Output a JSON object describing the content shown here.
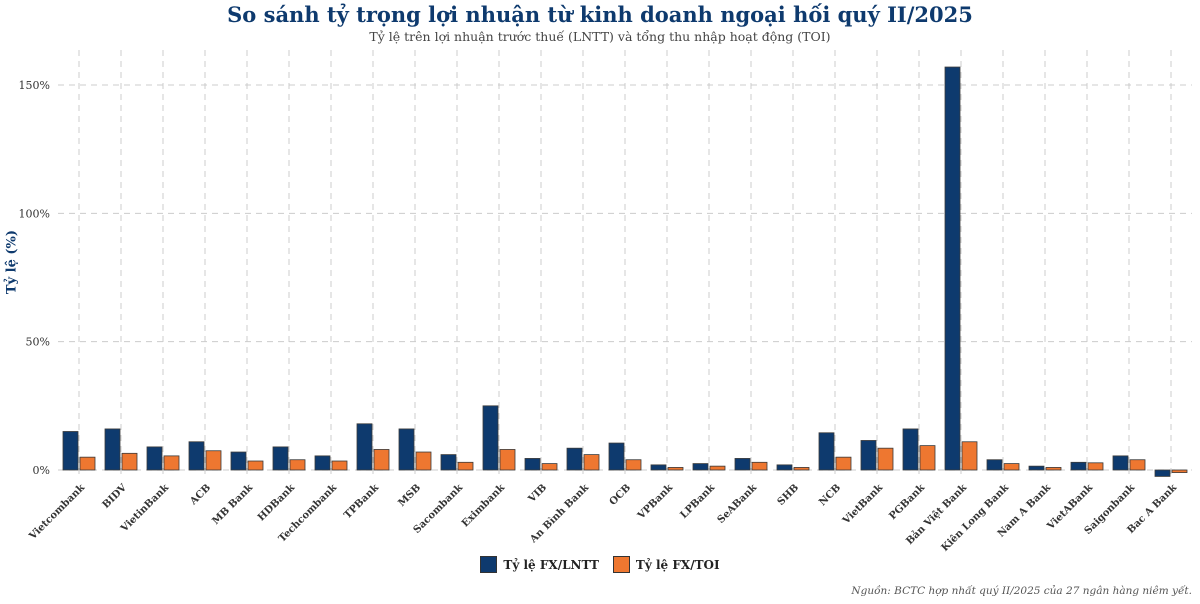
{
  "title": "So sánh tỷ trọng lợi nhuận từ kinh doanh ngoại hối quý II/2025",
  "subtitle": "Tỷ lệ trên lợi nhuận trước thuế (LNTT) và tổng thu nhập hoạt động (TOI)",
  "source": "Nguồn: BCTC hợp nhất quý II/2025 của 27 ngân hàng niêm yết.",
  "colors": {
    "fx_lntt": "#0e3a6e",
    "fx_toi": "#ee7730",
    "grid": "#cccccc"
  },
  "chart_data": {
    "type": "bar",
    "title": "So sánh tỷ trọng lợi nhuận từ kinh doanh ngoại hối quý II/2025",
    "xlabel": "",
    "ylabel": "Tỷ lệ (%)",
    "ylim": [
      -3,
      160
    ],
    "yticks": [
      0,
      50,
      100,
      150
    ],
    "ytick_labels": [
      "0%",
      "50%",
      "100%",
      "150%"
    ],
    "grid": true,
    "legend_position": "bottom-center",
    "categories": [
      "Vietcombank",
      "BIDV",
      "VietinBank",
      "ACB",
      "MB Bank",
      "HDBank",
      "Techcombank",
      "TPBank",
      "MSB",
      "Sacombank",
      "Eximbank",
      "VIB",
      "An Bình Bank",
      "OCB",
      "VPBank",
      "LPBank",
      "SeABank",
      "SHB",
      "NCB",
      "VietBank",
      "PGBank",
      "Bản Việt Bank",
      "Kiên Long Bank",
      "Nam A Bank",
      "VietABank",
      "Saigonbank",
      "Bac A Bank"
    ],
    "series": [
      {
        "name": "Tỷ lệ FX/LNTT",
        "values": [
          15,
          16,
          9,
          11,
          7,
          9,
          5.5,
          18,
          16,
          6,
          25,
          4.5,
          8.5,
          10.5,
          2,
          2.5,
          4.5,
          2,
          14.5,
          11.5,
          16,
          157,
          4,
          1.5,
          3,
          5.5,
          -2.5
        ]
      },
      {
        "name": "Tỷ lệ FX/TOI",
        "values": [
          5,
          6.5,
          5.5,
          7.5,
          3.5,
          4,
          3.5,
          8,
          7,
          3,
          8,
          2.5,
          6,
          4,
          1,
          1.5,
          3,
          1,
          5,
          8.5,
          9.5,
          11,
          2.5,
          1,
          2.8,
          4,
          -1
        ]
      }
    ]
  }
}
